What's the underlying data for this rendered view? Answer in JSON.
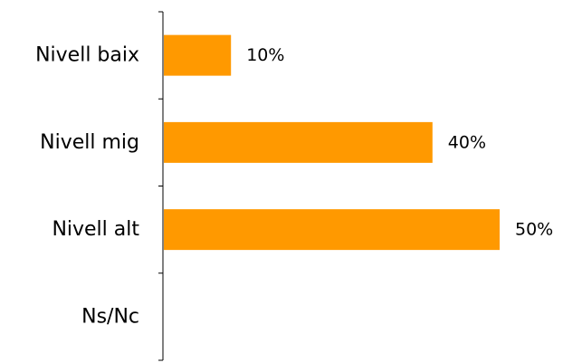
{
  "chart_data": {
    "type": "bar",
    "orientation": "horizontal",
    "categories": [
      "Nivell baix",
      "Nivell mig",
      "Nivell alt",
      "Ns/Nc"
    ],
    "values": [
      10,
      40,
      50,
      0
    ],
    "value_labels": [
      "10%",
      "40%",
      "50%",
      ""
    ],
    "xlim": [
      0,
      50
    ],
    "title": "",
    "xlabel": "",
    "ylabel": "",
    "grid": false,
    "legend": "none",
    "bar_color": "#FF9900",
    "axis_color": "#000000"
  }
}
